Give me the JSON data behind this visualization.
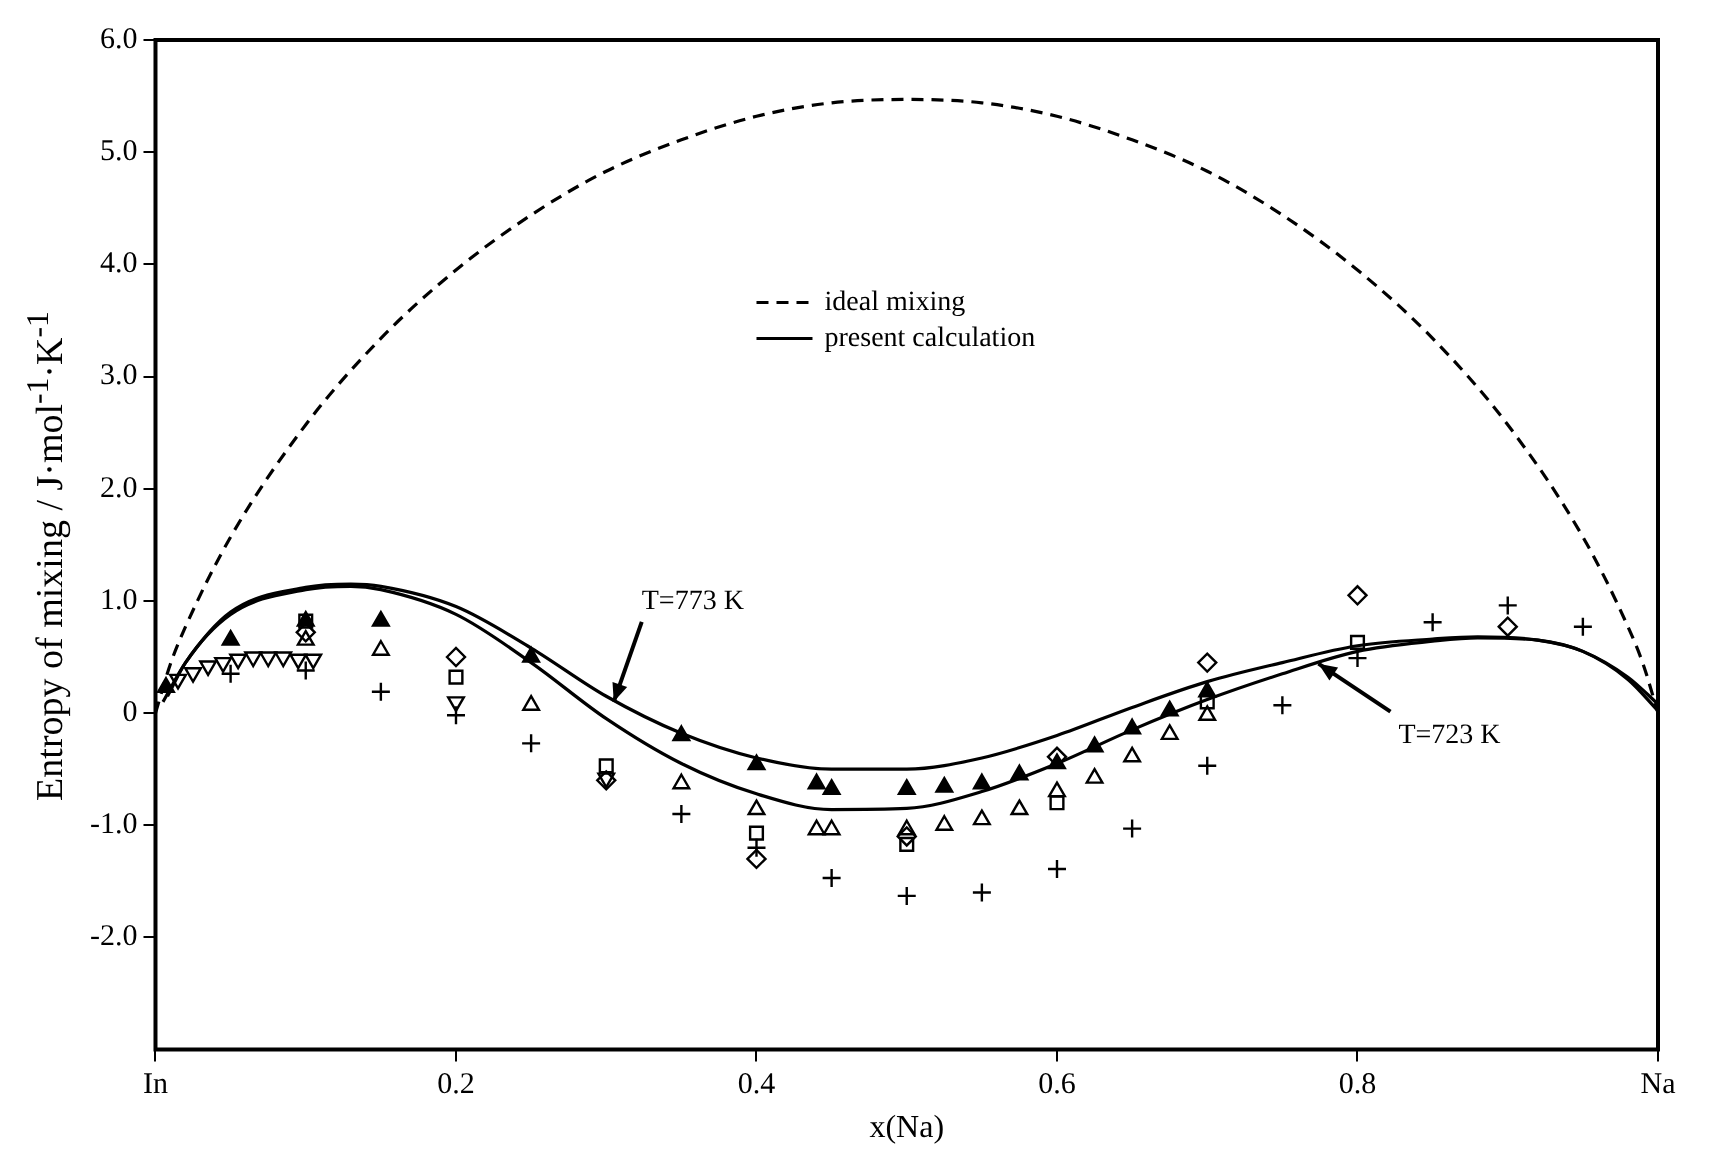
{
  "chart_data": {
    "type": "scatter",
    "xlabel": "x(Na)",
    "ylabel": "Entropy of mixing / J·mol$^{-1}$·K$^{-1}$",
    "xlim": [
      0,
      1
    ],
    "xticks": [
      {
        "value": 0,
        "label": "In"
      },
      0.2,
      0.4,
      0.6,
      0.8,
      {
        "value": 1,
        "label": "Na"
      }
    ],
    "ylim": [
      -3,
      6
    ],
    "yticks": [
      {
        "value": -2,
        "label": "-2.0"
      },
      {
        "value": -1,
        "label": "-1.0"
      },
      0,
      {
        "value": 1,
        "label": "1.0"
      },
      {
        "value": 2,
        "label": "2.0"
      },
      {
        "value": 3,
        "label": "3.0"
      },
      {
        "value": 4,
        "label": "4.0"
      },
      {
        "value": 5,
        "label": "5.0"
      },
      {
        "value": 6,
        "label": "6.0"
      }
    ],
    "grid": false,
    "legend": "top",
    "annotations": [
      {
        "text": "T=773 K",
        "x": 0.305,
        "y": 0.1
      },
      {
        "text": "T=723 K",
        "x": 0.774,
        "y": 0.44
      }
    ],
    "series": [
      {
        "name": "ideal mixing",
        "type": "line",
        "line_style": "dashed",
        "marker": "none",
        "color": "#000000",
        "x": [
          0,
          0.01,
          0.02,
          0.05,
          0.1,
          0.15,
          0.2,
          0.25,
          0.3,
          0.35,
          0.4,
          0.45,
          0.5,
          0.55,
          0.6,
          0.65,
          0.7,
          0.75,
          0.8,
          0.85,
          0.9,
          0.95,
          0.98,
          0.99,
          1
        ],
        "values": [
          0,
          0.44,
          0.77,
          1.57,
          2.57,
          3.34,
          3.95,
          4.44,
          4.83,
          5.11,
          5.32,
          5.44,
          5.47,
          5.44,
          5.32,
          5.11,
          4.83,
          4.44,
          3.95,
          3.34,
          2.57,
          1.57,
          0.77,
          0.44,
          0
        ]
      },
      {
        "name": "present calculation",
        "type": "line",
        "line_style": "solid",
        "marker": "none",
        "color": "#000000",
        "x": [
          0.005,
          0.02,
          0.05,
          0.1,
          0.13,
          0.15,
          0.2,
          0.25,
          0.3,
          0.35,
          0.4,
          0.45,
          0.5,
          0.55,
          0.6,
          0.65,
          0.7,
          0.75,
          0.8,
          0.85,
          0.88,
          0.92,
          0.95,
          0.98,
          1
        ],
        "values": [
          0.1,
          0.45,
          0.9,
          1.12,
          1.15,
          1.13,
          0.95,
          0.58,
          0.15,
          -0.18,
          -0.4,
          -0.5,
          -0.5,
          -0.4,
          -0.2,
          0.05,
          0.28,
          0.45,
          0.6,
          0.66,
          0.68,
          0.65,
          0.55,
          0.3,
          0.02
        ]
      },
      {
        "type": "line",
        "line_style": "solid",
        "marker": "none",
        "color": "#000000",
        "x": [
          0.008,
          0.02,
          0.05,
          0.1,
          0.13,
          0.15,
          0.2,
          0.25,
          0.3,
          0.35,
          0.4,
          0.45,
          0.5,
          0.55,
          0.6,
          0.65,
          0.7,
          0.75,
          0.8,
          0.85,
          0.88,
          0.92,
          0.95,
          0.98,
          1
        ],
        "values": [
          0.15,
          0.45,
          0.88,
          1.1,
          1.13,
          1.1,
          0.88,
          0.45,
          -0.05,
          -0.45,
          -0.72,
          -0.86,
          -0.85,
          -0.7,
          -0.45,
          -0.15,
          0.12,
          0.35,
          0.55,
          0.64,
          0.67,
          0.65,
          0.55,
          0.32,
          0.08
        ]
      },
      {
        "marker": "triangle",
        "color": "#000000",
        "x": [
          0.007,
          0.05,
          0.1,
          0.15,
          0.25,
          0.35,
          0.4,
          0.44,
          0.45,
          0.5,
          0.525,
          0.55,
          0.575,
          0.6,
          0.625,
          0.65,
          0.675,
          0.7
        ],
        "values": [
          0.23,
          0.65,
          0.82,
          0.82,
          0.5,
          -0.2,
          -0.46,
          -0.63,
          -0.68,
          -0.68,
          -0.66,
          -0.63,
          -0.55,
          -0.45,
          -0.3,
          -0.14,
          0.02,
          0.19
        ]
      },
      {
        "marker": "triangle-open",
        "color": "#000000",
        "x": [
          0.1,
          0.15,
          0.25,
          0.35,
          0.4,
          0.44,
          0.45,
          0.5,
          0.525,
          0.55,
          0.575,
          0.6,
          0.625,
          0.65,
          0.675,
          0.7
        ],
        "values": [
          0.65,
          0.56,
          0.07,
          -0.63,
          -0.86,
          -1.04,
          -1.04,
          -1.04,
          -1.0,
          -0.95,
          -0.86,
          -0.7,
          -0.58,
          -0.39,
          -0.19,
          -0.02
        ]
      },
      {
        "marker": "square",
        "color": "#000000",
        "x": [
          0.1,
          0.2,
          0.3,
          0.4,
          0.5,
          0.6,
          0.7,
          0.8
        ],
        "values": [
          0.82,
          0.32,
          -0.47,
          -1.07,
          -1.17,
          -0.8,
          0.1,
          0.63
        ]
      },
      {
        "marker": "diamond",
        "color": "#000000",
        "x": [
          0.1,
          0.2,
          0.3,
          0.4,
          0.5,
          0.6,
          0.7,
          0.8,
          0.9
        ],
        "values": [
          0.72,
          0.5,
          -0.6,
          -1.3,
          -1.1,
          -0.39,
          0.45,
          1.05,
          0.77
        ]
      },
      {
        "marker": "cross",
        "color": "#000000",
        "x": [
          0.05,
          0.1,
          0.15,
          0.2,
          0.25,
          0.35,
          0.4,
          0.45,
          0.5,
          0.55,
          0.6,
          0.65,
          0.7,
          0.75,
          0.8,
          0.85,
          0.9,
          0.95
        ],
        "values": [
          0.35,
          0.38,
          0.19,
          -0.02,
          -0.27,
          -0.9,
          -1.2,
          -1.47,
          -1.63,
          -1.6,
          -1.39,
          -1.03,
          -0.47,
          0.07,
          0.49,
          0.81,
          0.96,
          0.77
        ]
      },
      {
        "marker": "triangle-down",
        "color": "#000000",
        "x": [
          0.015,
          0.025,
          0.035,
          0.045,
          0.055,
          0.065,
          0.075,
          0.085,
          0.095,
          0.105,
          0.2,
          0.3
        ],
        "values": [
          0.3,
          0.36,
          0.42,
          0.45,
          0.48,
          0.5,
          0.5,
          0.5,
          0.48,
          0.48,
          0.1,
          -0.58
        ]
      }
    ]
  }
}
